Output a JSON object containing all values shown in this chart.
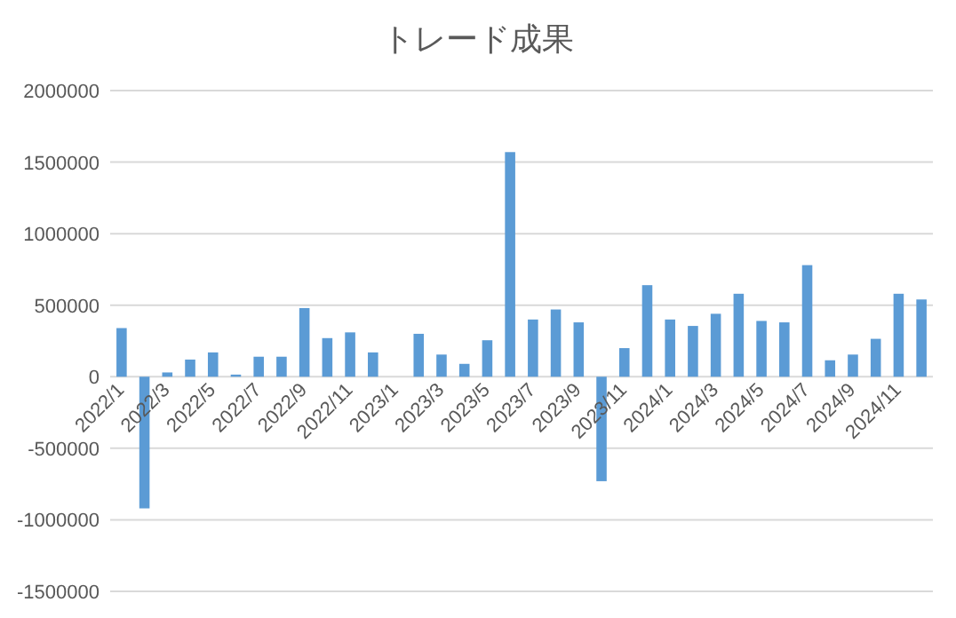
{
  "chart_data": {
    "type": "bar",
    "title": "トレード成果",
    "categories": [
      "2022/1",
      null,
      "2022/3",
      null,
      "2022/5",
      null,
      "2022/7",
      null,
      "2022/9",
      null,
      "2022/11",
      null,
      "2023/1",
      null,
      "2023/3",
      null,
      "2023/5",
      null,
      "2023/7",
      null,
      "2023/9",
      null,
      "2023/11",
      null,
      "2024/1",
      null,
      "2024/3",
      null,
      "2024/5",
      null,
      "2024/7",
      null,
      "2024/9",
      null,
      "2024/11",
      null
    ],
    "values": [
      340000,
      -920000,
      30000,
      120000,
      170000,
      15000,
      140000,
      140000,
      480000,
      270000,
      310000,
      170000,
      0,
      300000,
      155000,
      90000,
      255000,
      1570000,
      400000,
      470000,
      380000,
      -730000,
      200000,
      640000,
      400000,
      355000,
      440000,
      580000,
      390000,
      380000,
      780000,
      115000,
      155000,
      265000,
      580000,
      540000
    ],
    "color": "#5b9bd5",
    "ylim": [
      -1500000,
      2000000
    ],
    "yticks": [
      -1500000,
      -1000000,
      -500000,
      0,
      500000,
      1000000,
      1500000,
      2000000
    ],
    "grid": "y"
  }
}
